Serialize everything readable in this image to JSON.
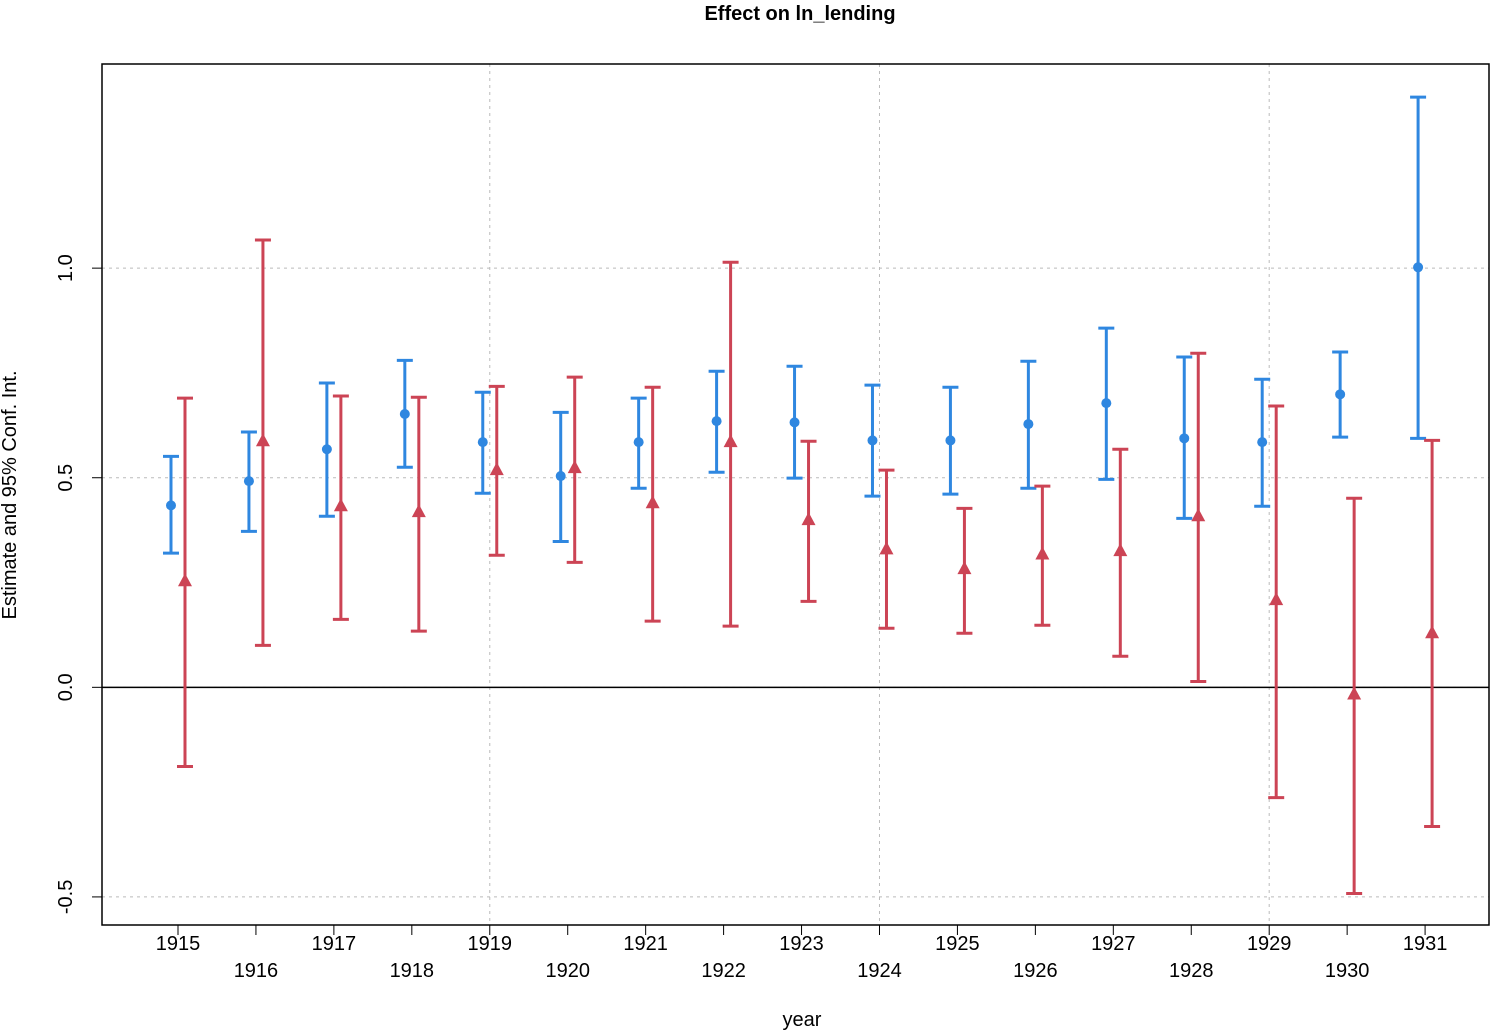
{
  "chart_data": {
    "type": "errorbar",
    "title": "Effect on ln_lending",
    "x_label": "year",
    "y_label": "Estimate and 95% Conf. Int.",
    "x": [
      1915,
      1916,
      1917,
      1918,
      1919,
      1920,
      1921,
      1922,
      1923,
      1924,
      1925,
      1926,
      1927,
      1928,
      1929,
      1930,
      1931
    ],
    "series": [
      {
        "color": "#2f87e0",
        "marker": "circle",
        "values": [
          0.434,
          0.492,
          0.568,
          0.652,
          0.585,
          0.504,
          0.585,
          0.635,
          0.632,
          0.589,
          0.589,
          0.628,
          0.678,
          0.594,
          0.585,
          0.699,
          1.002
        ],
        "ci_low": [
          0.32,
          0.372,
          0.408,
          0.525,
          0.463,
          0.348,
          0.475,
          0.513,
          0.499,
          0.456,
          0.461,
          0.475,
          0.496,
          0.403,
          0.432,
          0.597,
          0.594
        ],
        "ci_high": [
          0.551,
          0.609,
          0.726,
          0.78,
          0.704,
          0.656,
          0.69,
          0.754,
          0.766,
          0.721,
          0.716,
          0.778,
          0.857,
          0.788,
          0.735,
          0.8,
          1.408
        ]
      },
      {
        "color": "#cc4455",
        "marker": "triangle",
        "values": [
          0.253,
          0.587,
          0.432,
          0.418,
          0.518,
          0.523,
          0.439,
          0.585,
          0.399,
          0.329,
          0.282,
          0.317,
          0.325,
          0.408,
          0.208,
          -0.017,
          0.129
        ],
        "ci_low": [
          -0.189,
          0.1,
          0.162,
          0.134,
          0.315,
          0.298,
          0.158,
          0.146,
          0.205,
          0.141,
          0.129,
          0.148,
          0.074,
          0.014,
          -0.263,
          -0.492,
          -0.332
        ],
        "ci_high": [
          0.69,
          1.067,
          0.695,
          0.692,
          0.718,
          0.74,
          0.716,
          1.014,
          0.587,
          0.518,
          0.427,
          0.48,
          0.568,
          0.797,
          0.671,
          0.451,
          0.589
        ]
      }
    ],
    "xlim": [
      1914.025,
      1931.82
    ],
    "ylim": [
      -0.567,
      1.487
    ],
    "xticks": [
      1915,
      1916,
      1917,
      1918,
      1919,
      1920,
      1921,
      1922,
      1923,
      1924,
      1925,
      1926,
      1927,
      1928,
      1929,
      1930,
      1931
    ],
    "yticks": [
      -0.5,
      {
        "value": 0,
        "label": "0.0"
      },
      0.5,
      {
        "value": 1,
        "label": "1.0"
      }
    ],
    "xgrid": [
      1919,
      1924,
      1929
    ],
    "hline": 0
  }
}
